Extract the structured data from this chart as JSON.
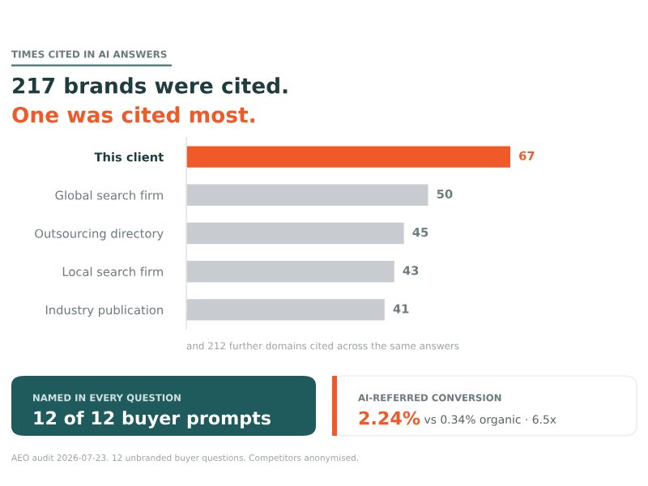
{
  "chart_data": {
    "type": "bar",
    "orientation": "horizontal",
    "title": "TIMES CITED IN AI ANSWERS",
    "subtitle": "217 brands were cited.",
    "categories": [
      "This client",
      "Global search firm",
      "Outsourcing directory",
      "Local search firm",
      "Industry publication"
    ],
    "values": [
      67,
      50,
      45,
      43,
      41
    ],
    "colors": [
      "#f05a28",
      "#c8ccd0",
      "#c8ccd0",
      "#c8ccd0",
      "#c8ccd0"
    ],
    "tick_labels": "y",
    "data_labels": true,
    "grid": false,
    "legend": false,
    "annotations": [
      "One was cited most.",
      "and 212 further domains cited across the same answers",
      "NAMED IN EVERY QUESTION",
      "12 of 12 buyer prompts",
      "AI-REFERRED CONVERSION",
      "2.24%",
      "vs 0.34% organic · 6.5x",
      "AEO audit 2026-07-23. 12 unbranded buyer questions. Competitors anonymised."
    ]
  }
}
